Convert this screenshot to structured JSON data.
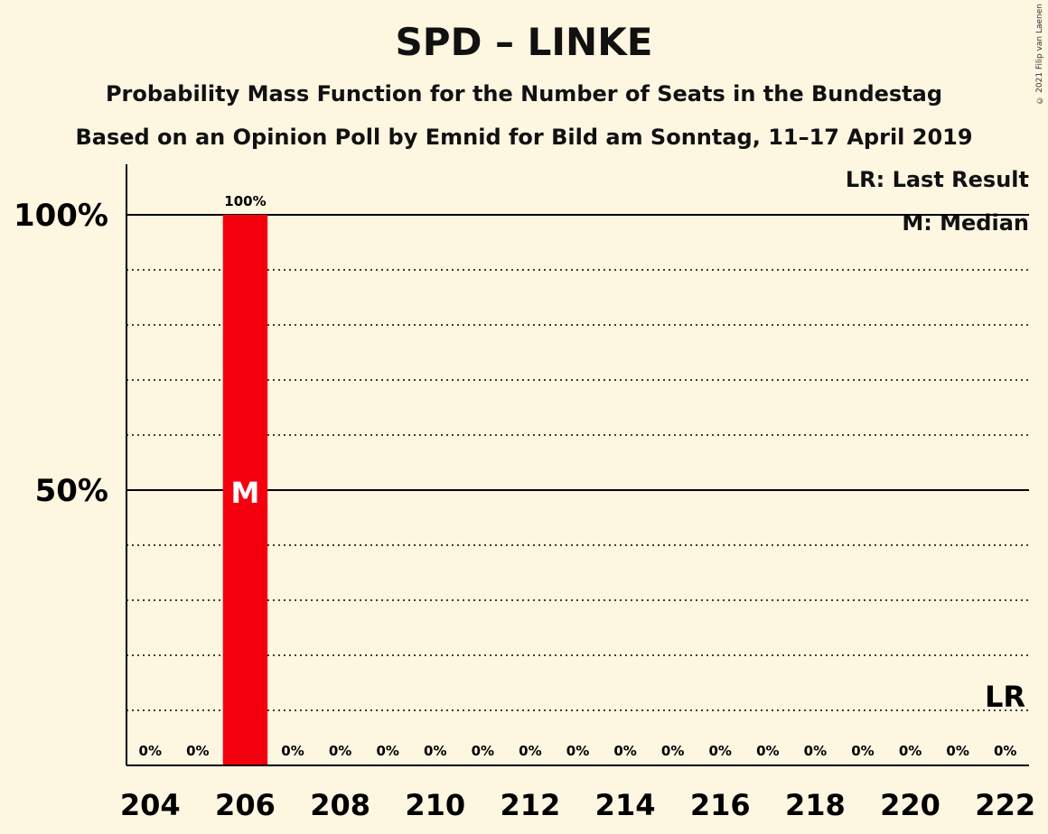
{
  "title": "SPD – LINKE",
  "subtitle_1": "Probability Mass Function for the Number of Seats in the Bundestag",
  "subtitle_2": "Based on an Opinion Poll by Emnid for Bild am Sonntag, 11–17 April 2019",
  "copyright": "© 2021 Filip van Laenen",
  "legend": {
    "last_result": "LR: Last Result",
    "median": "M: Median"
  },
  "colors": {
    "background": "#fdf6e1",
    "bar": "#f5000f",
    "axis": "#000000"
  },
  "chart_data": {
    "type": "bar",
    "title": "SPD – LINKE",
    "xlabel": "",
    "ylabel": "",
    "categories": [
      204,
      205,
      206,
      207,
      208,
      209,
      210,
      211,
      212,
      213,
      214,
      215,
      216,
      217,
      218,
      219,
      220,
      221,
      222
    ],
    "values": [
      0,
      0,
      100,
      0,
      0,
      0,
      0,
      0,
      0,
      0,
      0,
      0,
      0,
      0,
      0,
      0,
      0,
      0,
      0
    ],
    "value_labels": [
      "0%",
      "0%",
      "100%",
      "0%",
      "0%",
      "0%",
      "0%",
      "0%",
      "0%",
      "0%",
      "0%",
      "0%",
      "0%",
      "0%",
      "0%",
      "0%",
      "0%",
      "0%",
      "0%"
    ],
    "x_tick_labels": [
      "204",
      "206",
      "208",
      "210",
      "212",
      "214",
      "216",
      "218",
      "220",
      "222"
    ],
    "x_tick_values": [
      204,
      206,
      208,
      210,
      212,
      214,
      216,
      218,
      220,
      222
    ],
    "y_tick_labels": [
      "50%",
      "100%"
    ],
    "y_tick_values": [
      50,
      100
    ],
    "y_minor_gridlines": [
      10,
      20,
      30,
      40,
      60,
      70,
      80,
      90
    ],
    "ylim": [
      0,
      100
    ],
    "median": 206,
    "median_label": "M",
    "last_result": 222,
    "last_result_label": "LR",
    "grid": true,
    "legend_position": "top-right"
  }
}
